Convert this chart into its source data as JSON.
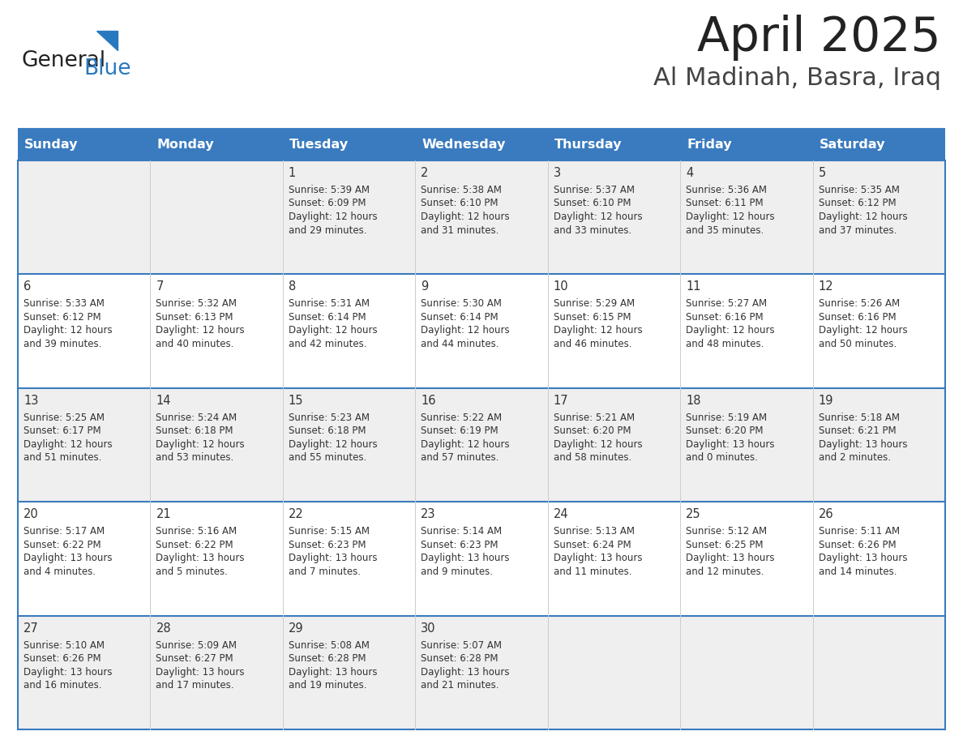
{
  "title": "April 2025",
  "subtitle": "Al Madinah, Basra, Iraq",
  "header_bg": "#3a7bbf",
  "header_text_color": "#FFFFFF",
  "row_bg_even": "#EFEFEF",
  "row_bg_odd": "#FFFFFF",
  "border_color": "#3a7bbf",
  "day_names": [
    "Sunday",
    "Monday",
    "Tuesday",
    "Wednesday",
    "Thursday",
    "Friday",
    "Saturday"
  ],
  "days": [
    {
      "date": 1,
      "col": 2,
      "row": 0,
      "sunrise": "5:39 AM",
      "sunset": "6:09 PM",
      "daylight_h": "12 hours",
      "daylight_m": "and 29 minutes."
    },
    {
      "date": 2,
      "col": 3,
      "row": 0,
      "sunrise": "5:38 AM",
      "sunset": "6:10 PM",
      "daylight_h": "12 hours",
      "daylight_m": "and 31 minutes."
    },
    {
      "date": 3,
      "col": 4,
      "row": 0,
      "sunrise": "5:37 AM",
      "sunset": "6:10 PM",
      "daylight_h": "12 hours",
      "daylight_m": "and 33 minutes."
    },
    {
      "date": 4,
      "col": 5,
      "row": 0,
      "sunrise": "5:36 AM",
      "sunset": "6:11 PM",
      "daylight_h": "12 hours",
      "daylight_m": "and 35 minutes."
    },
    {
      "date": 5,
      "col": 6,
      "row": 0,
      "sunrise": "5:35 AM",
      "sunset": "6:12 PM",
      "daylight_h": "12 hours",
      "daylight_m": "and 37 minutes."
    },
    {
      "date": 6,
      "col": 0,
      "row": 1,
      "sunrise": "5:33 AM",
      "sunset": "6:12 PM",
      "daylight_h": "12 hours",
      "daylight_m": "and 39 minutes."
    },
    {
      "date": 7,
      "col": 1,
      "row": 1,
      "sunrise": "5:32 AM",
      "sunset": "6:13 PM",
      "daylight_h": "12 hours",
      "daylight_m": "and 40 minutes."
    },
    {
      "date": 8,
      "col": 2,
      "row": 1,
      "sunrise": "5:31 AM",
      "sunset": "6:14 PM",
      "daylight_h": "12 hours",
      "daylight_m": "and 42 minutes."
    },
    {
      "date": 9,
      "col": 3,
      "row": 1,
      "sunrise": "5:30 AM",
      "sunset": "6:14 PM",
      "daylight_h": "12 hours",
      "daylight_m": "and 44 minutes."
    },
    {
      "date": 10,
      "col": 4,
      "row": 1,
      "sunrise": "5:29 AM",
      "sunset": "6:15 PM",
      "daylight_h": "12 hours",
      "daylight_m": "and 46 minutes."
    },
    {
      "date": 11,
      "col": 5,
      "row": 1,
      "sunrise": "5:27 AM",
      "sunset": "6:16 PM",
      "daylight_h": "12 hours",
      "daylight_m": "and 48 minutes."
    },
    {
      "date": 12,
      "col": 6,
      "row": 1,
      "sunrise": "5:26 AM",
      "sunset": "6:16 PM",
      "daylight_h": "12 hours",
      "daylight_m": "and 50 minutes."
    },
    {
      "date": 13,
      "col": 0,
      "row": 2,
      "sunrise": "5:25 AM",
      "sunset": "6:17 PM",
      "daylight_h": "12 hours",
      "daylight_m": "and 51 minutes."
    },
    {
      "date": 14,
      "col": 1,
      "row": 2,
      "sunrise": "5:24 AM",
      "sunset": "6:18 PM",
      "daylight_h": "12 hours",
      "daylight_m": "and 53 minutes."
    },
    {
      "date": 15,
      "col": 2,
      "row": 2,
      "sunrise": "5:23 AM",
      "sunset": "6:18 PM",
      "daylight_h": "12 hours",
      "daylight_m": "and 55 minutes."
    },
    {
      "date": 16,
      "col": 3,
      "row": 2,
      "sunrise": "5:22 AM",
      "sunset": "6:19 PM",
      "daylight_h": "12 hours",
      "daylight_m": "and 57 minutes."
    },
    {
      "date": 17,
      "col": 4,
      "row": 2,
      "sunrise": "5:21 AM",
      "sunset": "6:20 PM",
      "daylight_h": "12 hours",
      "daylight_m": "and 58 minutes."
    },
    {
      "date": 18,
      "col": 5,
      "row": 2,
      "sunrise": "5:19 AM",
      "sunset": "6:20 PM",
      "daylight_h": "13 hours",
      "daylight_m": "and 0 minutes."
    },
    {
      "date": 19,
      "col": 6,
      "row": 2,
      "sunrise": "5:18 AM",
      "sunset": "6:21 PM",
      "daylight_h": "13 hours",
      "daylight_m": "and 2 minutes."
    },
    {
      "date": 20,
      "col": 0,
      "row": 3,
      "sunrise": "5:17 AM",
      "sunset": "6:22 PM",
      "daylight_h": "13 hours",
      "daylight_m": "and 4 minutes."
    },
    {
      "date": 21,
      "col": 1,
      "row": 3,
      "sunrise": "5:16 AM",
      "sunset": "6:22 PM",
      "daylight_h": "13 hours",
      "daylight_m": "and 5 minutes."
    },
    {
      "date": 22,
      "col": 2,
      "row": 3,
      "sunrise": "5:15 AM",
      "sunset": "6:23 PM",
      "daylight_h": "13 hours",
      "daylight_m": "and 7 minutes."
    },
    {
      "date": 23,
      "col": 3,
      "row": 3,
      "sunrise": "5:14 AM",
      "sunset": "6:23 PM",
      "daylight_h": "13 hours",
      "daylight_m": "and 9 minutes."
    },
    {
      "date": 24,
      "col": 4,
      "row": 3,
      "sunrise": "5:13 AM",
      "sunset": "6:24 PM",
      "daylight_h": "13 hours",
      "daylight_m": "and 11 minutes."
    },
    {
      "date": 25,
      "col": 5,
      "row": 3,
      "sunrise": "5:12 AM",
      "sunset": "6:25 PM",
      "daylight_h": "13 hours",
      "daylight_m": "and 12 minutes."
    },
    {
      "date": 26,
      "col": 6,
      "row": 3,
      "sunrise": "5:11 AM",
      "sunset": "6:26 PM",
      "daylight_h": "13 hours",
      "daylight_m": "and 14 minutes."
    },
    {
      "date": 27,
      "col": 0,
      "row": 4,
      "sunrise": "5:10 AM",
      "sunset": "6:26 PM",
      "daylight_h": "13 hours",
      "daylight_m": "and 16 minutes."
    },
    {
      "date": 28,
      "col": 1,
      "row": 4,
      "sunrise": "5:09 AM",
      "sunset": "6:27 PM",
      "daylight_h": "13 hours",
      "daylight_m": "and 17 minutes."
    },
    {
      "date": 29,
      "col": 2,
      "row": 4,
      "sunrise": "5:08 AM",
      "sunset": "6:28 PM",
      "daylight_h": "13 hours",
      "daylight_m": "and 19 minutes."
    },
    {
      "date": 30,
      "col": 3,
      "row": 4,
      "sunrise": "5:07 AM",
      "sunset": "6:28 PM",
      "daylight_h": "13 hours",
      "daylight_m": "and 21 minutes."
    }
  ],
  "num_rows": 5,
  "num_cols": 7,
  "logo_color_general": "#222222",
  "logo_color_blue": "#2878c0",
  "logo_triangle_color": "#2878c0",
  "title_color": "#222222",
  "subtitle_color": "#444444",
  "cell_text_color": "#333333",
  "cell_text_fs": 8.5,
  "date_fontsize": 10.5,
  "header_fontsize": 11.5
}
